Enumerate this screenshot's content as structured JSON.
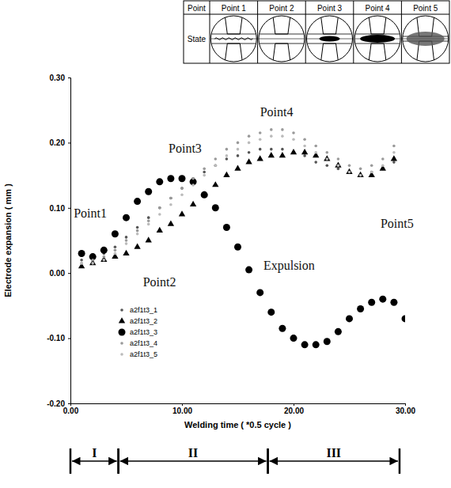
{
  "table": {
    "header": [
      "Point",
      "Point 1",
      "Point 2",
      "Point 3",
      "Point 4",
      "Point 5"
    ],
    "row_label": "State"
  },
  "chart_data": {
    "type": "scatter",
    "x_label": "Welding time ( *0.5 cycle )",
    "y_label": "Electrode expansion ( mm )",
    "xlim": [
      0,
      30
    ],
    "xticks": [
      {
        "value": 0,
        "label": "0.00"
      },
      {
        "value": 10,
        "label": "10.00"
      },
      {
        "value": 20,
        "label": "20.00"
      },
      {
        "value": 30,
        "label": "30.00"
      }
    ],
    "ylim": [
      -0.2,
      0.3
    ],
    "yticks": [
      {
        "value": -0.2,
        "label": "-0.20"
      },
      {
        "value": -0.1,
        "label": "-0.10"
      },
      {
        "value": 0,
        "label": "0.00"
      },
      {
        "value": 0.1,
        "label": "0.10"
      },
      {
        "value": 0.2,
        "label": "0.20"
      },
      {
        "value": 0.3,
        "label": "0.30"
      }
    ],
    "grid": false,
    "legend": "lower left",
    "series": [
      {
        "name": "a2f1t3_1",
        "color": "#555555",
        "marker": "dot",
        "line_style": "none",
        "x": [
          1,
          2,
          3,
          4,
          5,
          6,
          7,
          8,
          9,
          10,
          11,
          12,
          13,
          14,
          15,
          16,
          17,
          18,
          19,
          20,
          21,
          22,
          23,
          24,
          25,
          26,
          27,
          28,
          29
        ],
        "values": [
          0.02,
          0.02,
          0.03,
          0.04,
          0.055,
          0.07,
          0.085,
          0.1,
          0.115,
          0.13,
          0.145,
          0.155,
          0.165,
          0.175,
          0.18,
          0.185,
          0.19,
          0.19,
          0.19,
          0.185,
          0.18,
          0.17,
          0.165,
          0.16,
          0.155,
          0.15,
          0.155,
          0.16,
          0.17
        ]
      },
      {
        "name": "a2f1t3_2",
        "color": "#000000",
        "marker": "triangle",
        "line_style": "none",
        "x": [
          1,
          2,
          3,
          4,
          5,
          6,
          7,
          8,
          9,
          10,
          11,
          12,
          13,
          14,
          15,
          16,
          17,
          18,
          19,
          20,
          21,
          22,
          23,
          24,
          25,
          26,
          27,
          28,
          29
        ],
        "values": [
          0.01,
          0.015,
          0.02,
          0.025,
          0.03,
          0.04,
          0.05,
          0.065,
          0.075,
          0.09,
          0.105,
          0.12,
          0.135,
          0.15,
          0.16,
          0.17,
          0.175,
          0.18,
          0.18,
          0.185,
          0.185,
          0.18,
          0.175,
          0.165,
          0.155,
          0.15,
          0.15,
          0.16,
          0.175
        ]
      },
      {
        "name": "a2f1t3_3",
        "color": "#000000",
        "marker": "circle",
        "line_style": "none",
        "x": [
          1,
          2,
          3,
          4,
          5,
          6,
          7,
          8,
          9,
          10,
          11,
          12,
          13,
          14,
          15,
          16,
          17,
          18,
          19,
          20,
          21,
          22,
          23,
          24,
          25,
          26,
          27,
          28,
          29,
          30
        ],
        "values": [
          0.03,
          0.025,
          0.035,
          0.06,
          0.085,
          0.11,
          0.125,
          0.14,
          0.145,
          0.145,
          0.14,
          0.12,
          0.1,
          0.07,
          0.04,
          0.005,
          -0.03,
          -0.06,
          -0.085,
          -0.1,
          -0.11,
          -0.11,
          -0.105,
          -0.09,
          -0.07,
          -0.055,
          -0.045,
          -0.04,
          -0.045,
          -0.07
        ]
      },
      {
        "name": "a2f1t3_4",
        "color": "#9a9a9a",
        "marker": "dot",
        "line_style": "none",
        "x": [
          1,
          2,
          3,
          4,
          5,
          6,
          7,
          8,
          9,
          10,
          11,
          12,
          13,
          14,
          15,
          16,
          17,
          18,
          19,
          20,
          21,
          22,
          23,
          24,
          25,
          26,
          27,
          28,
          29
        ],
        "values": [
          0.015,
          0.02,
          0.025,
          0.035,
          0.05,
          0.065,
          0.08,
          0.1,
          0.115,
          0.13,
          0.145,
          0.16,
          0.175,
          0.19,
          0.2,
          0.21,
          0.215,
          0.22,
          0.22,
          0.215,
          0.205,
          0.195,
          0.185,
          0.175,
          0.165,
          0.16,
          0.165,
          0.175,
          0.195
        ]
      },
      {
        "name": "a2f1t3_5",
        "color": "#bbbbbb",
        "marker": "dot",
        "line_style": "none",
        "x": [
          1,
          2,
          3,
          4,
          5,
          6,
          7,
          8,
          9,
          10,
          11,
          12,
          13,
          14,
          15,
          16,
          17,
          18,
          19,
          20,
          21,
          22,
          23,
          24,
          25,
          26,
          27,
          28,
          29
        ],
        "values": [
          0.015,
          0.015,
          0.02,
          0.03,
          0.045,
          0.06,
          0.075,
          0.09,
          0.105,
          0.12,
          0.135,
          0.15,
          0.165,
          0.18,
          0.19,
          0.2,
          0.205,
          0.21,
          0.21,
          0.205,
          0.195,
          0.185,
          0.175,
          0.165,
          0.155,
          0.15,
          0.155,
          0.165,
          0.185
        ]
      }
    ],
    "annotations": [
      {
        "text": "Point1",
        "x": 0.3,
        "y": 0.085
      },
      {
        "text": "Point2",
        "x": 6.5,
        "y": -0.02
      },
      {
        "text": "Point3",
        "x": 8.8,
        "y": 0.185
      },
      {
        "text": "Point4",
        "x": 17,
        "y": 0.24
      },
      {
        "text": "Point5",
        "x": 27.8,
        "y": 0.07
      },
      {
        "text": "Expulsion",
        "x": 17.3,
        "y": 0.005
      }
    ],
    "stages": [
      {
        "label": "I",
        "start": 0,
        "end": 4.3
      },
      {
        "label": "II",
        "start": 4.3,
        "end": 17.7
      },
      {
        "label": "III",
        "start": 17.7,
        "end": 29.5
      }
    ]
  }
}
